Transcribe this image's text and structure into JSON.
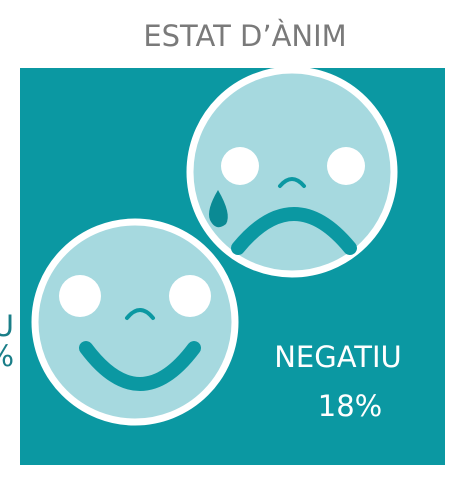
{
  "title": "ESTAT D’ÀNIM",
  "cropped_left_label": {
    "name": "U",
    "value": "%"
  },
  "negative": {
    "name": "NEGATIU",
    "value": "18%"
  }
}
